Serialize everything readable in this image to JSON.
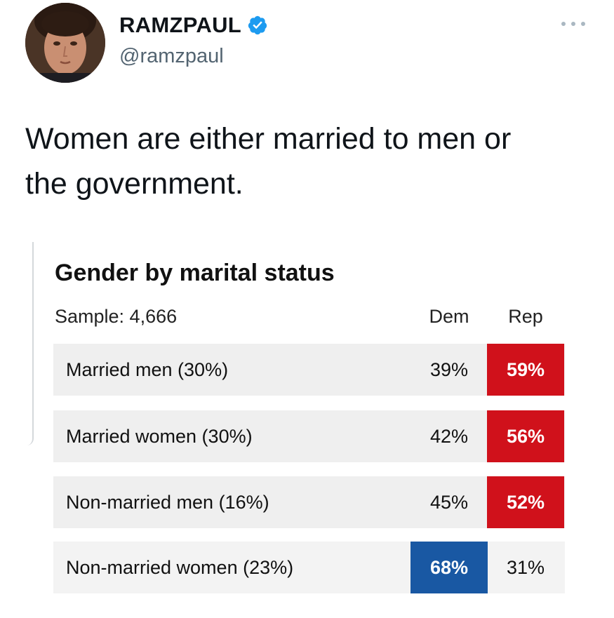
{
  "tweet": {
    "display_name": "RAMZPAUL",
    "handle": "@ramzpaul",
    "verified_icon": "verified-badge-icon",
    "more_icon": "more-options-icon",
    "text_line_1": "Women are either married to men or",
    "text_line_2": "the government."
  },
  "card": {
    "title": "Gender by marital status",
    "sample": "Sample: 4,666",
    "columns": {
      "dem": "Dem",
      "rep": "Rep"
    },
    "rows": [
      {
        "label": "Married men (30%)",
        "dem": "39%",
        "rep": "59%",
        "winner": "rep"
      },
      {
        "label": "Married women (30%)",
        "dem": "42%",
        "rep": "56%",
        "winner": "rep"
      },
      {
        "label": "Non-married men (16%)",
        "dem": "45%",
        "rep": "52%",
        "winner": "rep"
      },
      {
        "label": "Non-married women (23%)",
        "dem": "68%",
        "rep": "31%",
        "winner": "dem"
      }
    ]
  },
  "colors": {
    "rep_highlight": "#d0111b",
    "dem_highlight": "#1958a3",
    "verified_blue": "#1d9bf0",
    "row_background": "#efefef"
  }
}
